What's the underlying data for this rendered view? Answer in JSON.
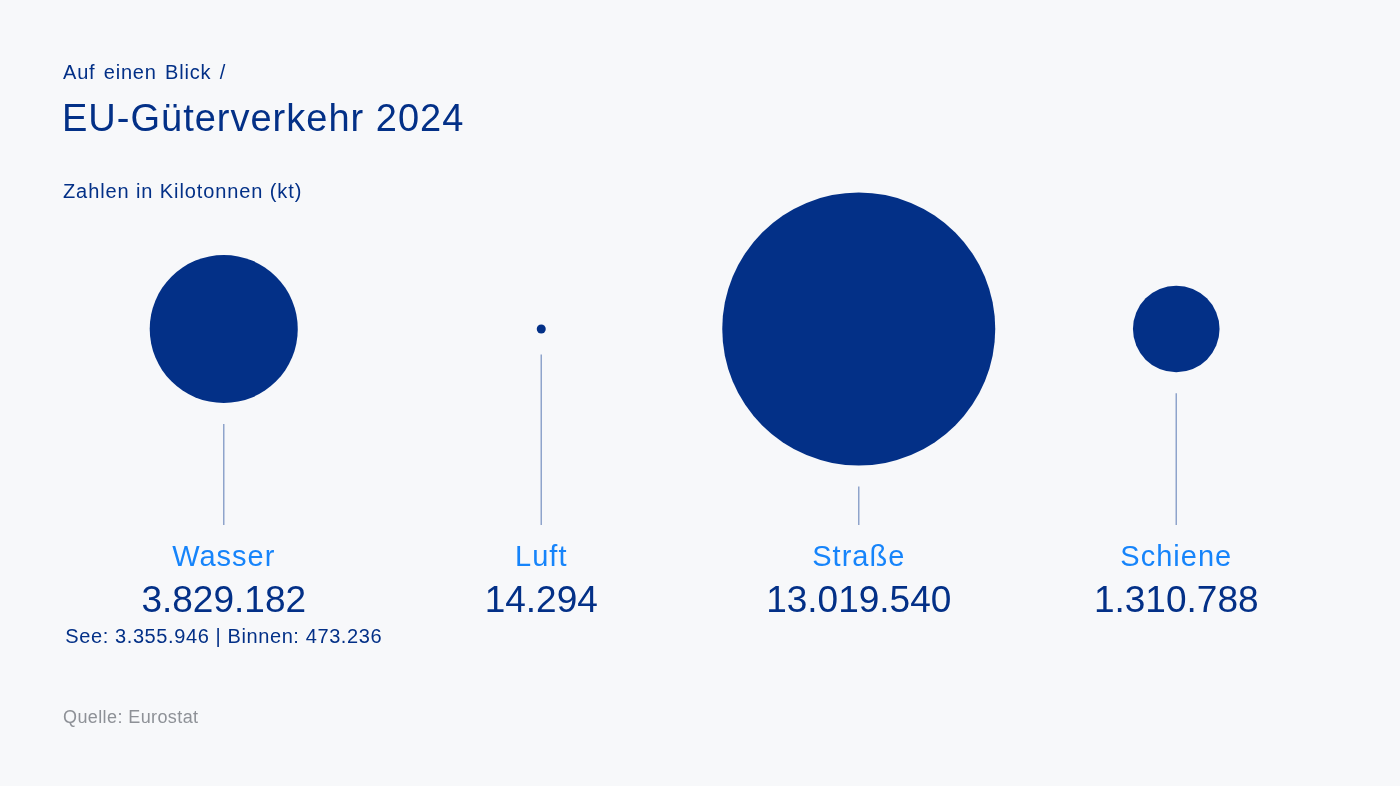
{
  "chart_data": {
    "type": "other",
    "title": "EU-Güterverkehr 2024",
    "subtitle": "Zahlen in Kilotonnen (kt)",
    "categories": [
      "Wasser",
      "Luft",
      "Straße",
      "Schiene"
    ],
    "values": [
      3829182,
      14294,
      13019540,
      1310788
    ],
    "value_labels": [
      "3.829.182",
      "14.294",
      "13.019.540",
      "1.310.788"
    ],
    "color": "#033087",
    "annotations": [
      "Auf einen Blick /",
      {
        "text": "See: 3.355.946 | Binnen: 473.236",
        "x": "Wasser"
      },
      "Quelle: Eurostat"
    ]
  }
}
